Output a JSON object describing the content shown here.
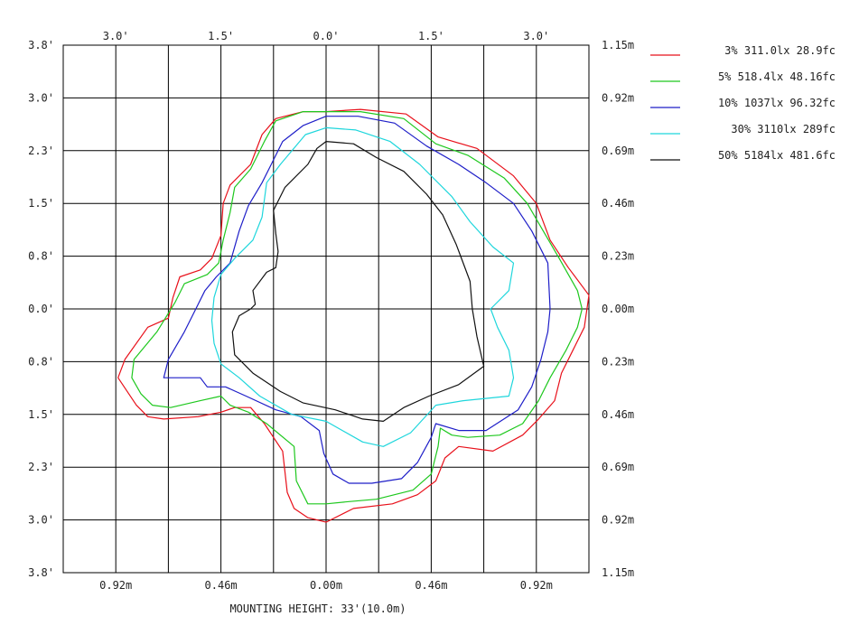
{
  "chart_data": {
    "type": "line",
    "grid": true,
    "xlim_m": [
      -1.15,
      1.15
    ],
    "ylim_m": [
      -1.15,
      1.15
    ],
    "x_ticks_bottom": [
      "0.92m",
      "0.46m",
      "0.00m",
      "0.46m",
      "0.92m"
    ],
    "x_ticks_top": [
      "3.0'",
      "1.5'",
      "0.0'",
      "1.5'",
      "3.0'"
    ],
    "y_ticks_left": [
      "3.8'",
      "3.0'",
      "2.3'",
      "1.5'",
      "0.8'",
      "0.0'",
      "0.8'",
      "1.5'",
      "2.3'",
      "3.0'",
      "3.8'"
    ],
    "y_ticks_right": [
      "1.15m",
      "0.92m",
      "0.69m",
      "0.46m",
      "0.23m",
      "0.00m",
      "0.23m",
      "0.46m",
      "0.69m",
      "0.92m",
      "1.15m"
    ],
    "caption": "MOUNTING HEIGHT: 33'(10.0m)",
    "series": [
      {
        "name": "3% 311.0lx 28.9fc",
        "color": "#e8101a",
        "points": [
          [
            0.0,
            0.86
          ],
          [
            0.15,
            0.87
          ],
          [
            0.35,
            0.85
          ],
          [
            0.49,
            0.75
          ],
          [
            0.66,
            0.7
          ],
          [
            0.82,
            0.58
          ],
          [
            0.92,
            0.46
          ],
          [
            0.98,
            0.3
          ],
          [
            1.06,
            0.18
          ],
          [
            1.15,
            0.06
          ],
          [
            1.13,
            -0.08
          ],
          [
            1.08,
            -0.18
          ],
          [
            1.03,
            -0.28
          ],
          [
            1.0,
            -0.4
          ],
          [
            0.93,
            -0.48
          ],
          [
            0.86,
            -0.55
          ],
          [
            0.73,
            -0.62
          ],
          [
            0.58,
            -0.6
          ],
          [
            0.52,
            -0.65
          ],
          [
            0.48,
            -0.75
          ],
          [
            0.4,
            -0.81
          ],
          [
            0.29,
            -0.85
          ],
          [
            0.12,
            -0.87
          ],
          [
            0.0,
            -0.93
          ],
          [
            -0.08,
            -0.91
          ],
          [
            -0.14,
            -0.87
          ],
          [
            -0.17,
            -0.8
          ],
          [
            -0.19,
            -0.62
          ],
          [
            -0.27,
            -0.5
          ],
          [
            -0.33,
            -0.43
          ],
          [
            -0.4,
            -0.43
          ],
          [
            -0.46,
            -0.45
          ],
          [
            -0.56,
            -0.47
          ],
          [
            -0.71,
            -0.48
          ],
          [
            -0.78,
            -0.47
          ],
          [
            -0.83,
            -0.42
          ],
          [
            -0.91,
            -0.3
          ],
          [
            -0.88,
            -0.22
          ],
          [
            -0.78,
            -0.08
          ],
          [
            -0.69,
            -0.04
          ],
          [
            -0.67,
            0.05
          ],
          [
            -0.64,
            0.14
          ],
          [
            -0.55,
            0.17
          ],
          [
            -0.5,
            0.22
          ],
          [
            -0.46,
            0.32
          ],
          [
            -0.45,
            0.46
          ],
          [
            -0.42,
            0.54
          ],
          [
            -0.33,
            0.63
          ],
          [
            -0.28,
            0.76
          ],
          [
            -0.22,
            0.83
          ],
          [
            -0.1,
            0.86
          ],
          [
            0.0,
            0.86
          ]
        ]
      },
      {
        "name": "5% 518.4lx 48.16fc",
        "color": "#1ec81e",
        "points": [
          [
            0.0,
            0.86
          ],
          [
            0.15,
            0.86
          ],
          [
            0.34,
            0.83
          ],
          [
            0.48,
            0.72
          ],
          [
            0.62,
            0.67
          ],
          [
            0.78,
            0.57
          ],
          [
            0.88,
            0.46
          ],
          [
            0.95,
            0.34
          ],
          [
            1.02,
            0.22
          ],
          [
            1.1,
            0.08
          ],
          [
            1.12,
            0.0
          ],
          [
            1.1,
            -0.08
          ],
          [
            1.05,
            -0.18
          ],
          [
            0.98,
            -0.3
          ],
          [
            0.93,
            -0.4
          ],
          [
            0.86,
            -0.5
          ],
          [
            0.76,
            -0.55
          ],
          [
            0.62,
            -0.56
          ],
          [
            0.55,
            -0.55
          ],
          [
            0.5,
            -0.52
          ],
          [
            0.49,
            -0.6
          ],
          [
            0.46,
            -0.72
          ],
          [
            0.38,
            -0.79
          ],
          [
            0.22,
            -0.83
          ],
          [
            0.1,
            -0.84
          ],
          [
            0.0,
            -0.85
          ],
          [
            -0.08,
            -0.85
          ],
          [
            -0.13,
            -0.75
          ],
          [
            -0.14,
            -0.6
          ],
          [
            -0.26,
            -0.5
          ],
          [
            -0.34,
            -0.45
          ],
          [
            -0.42,
            -0.42
          ],
          [
            -0.46,
            -0.38
          ],
          [
            -0.55,
            -0.4
          ],
          [
            -0.68,
            -0.43
          ],
          [
            -0.76,
            -0.42
          ],
          [
            -0.81,
            -0.37
          ],
          [
            -0.85,
            -0.3
          ],
          [
            -0.84,
            -0.22
          ],
          [
            -0.74,
            -0.1
          ],
          [
            -0.66,
            0.03
          ],
          [
            -0.62,
            0.11
          ],
          [
            -0.52,
            0.15
          ],
          [
            -0.47,
            0.2
          ],
          [
            -0.45,
            0.3
          ],
          [
            -0.42,
            0.42
          ],
          [
            -0.4,
            0.53
          ],
          [
            -0.33,
            0.61
          ],
          [
            -0.27,
            0.73
          ],
          [
            -0.22,
            0.82
          ],
          [
            -0.1,
            0.86
          ],
          [
            0.0,
            0.86
          ]
        ]
      },
      {
        "name": "10% 1037lx 96.32fc",
        "color": "#1e1ec8",
        "points": [
          [
            0.0,
            0.84
          ],
          [
            0.14,
            0.84
          ],
          [
            0.3,
            0.81
          ],
          [
            0.44,
            0.71
          ],
          [
            0.58,
            0.63
          ],
          [
            0.7,
            0.55
          ],
          [
            0.82,
            0.46
          ],
          [
            0.9,
            0.34
          ],
          [
            0.97,
            0.2
          ],
          [
            0.98,
            0.0
          ],
          [
            0.97,
            -0.1
          ],
          [
            0.94,
            -0.22
          ],
          [
            0.9,
            -0.34
          ],
          [
            0.84,
            -0.44
          ],
          [
            0.7,
            -0.53
          ],
          [
            0.58,
            -0.53
          ],
          [
            0.48,
            -0.5
          ],
          [
            0.46,
            -0.56
          ],
          [
            0.4,
            -0.67
          ],
          [
            0.33,
            -0.74
          ],
          [
            0.2,
            -0.76
          ],
          [
            0.1,
            -0.76
          ],
          [
            0.03,
            -0.72
          ],
          [
            -0.01,
            -0.63
          ],
          [
            -0.03,
            -0.53
          ],
          [
            -0.11,
            -0.47
          ],
          [
            -0.22,
            -0.44
          ],
          [
            -0.35,
            -0.38
          ],
          [
            -0.44,
            -0.34
          ],
          [
            -0.52,
            -0.34
          ],
          [
            -0.55,
            -0.3
          ],
          [
            -0.64,
            -0.3
          ],
          [
            -0.71,
            -0.3
          ],
          [
            -0.69,
            -0.22
          ],
          [
            -0.62,
            -0.1
          ],
          [
            -0.57,
            0.0
          ],
          [
            -0.53,
            0.08
          ],
          [
            -0.48,
            0.14
          ],
          [
            -0.42,
            0.2
          ],
          [
            -0.38,
            0.34
          ],
          [
            -0.34,
            0.45
          ],
          [
            -0.28,
            0.55
          ],
          [
            -0.24,
            0.63
          ],
          [
            -0.19,
            0.73
          ],
          [
            -0.1,
            0.8
          ],
          [
            0.0,
            0.84
          ]
        ]
      },
      {
        "name": "30% 3110lx 289fc",
        "color": "#1ed6dc",
        "points": [
          [
            0.0,
            0.79
          ],
          [
            0.13,
            0.78
          ],
          [
            0.28,
            0.73
          ],
          [
            0.41,
            0.63
          ],
          [
            0.55,
            0.49
          ],
          [
            0.63,
            0.38
          ],
          [
            0.73,
            0.27
          ],
          [
            0.82,
            0.2
          ],
          [
            0.8,
            0.08
          ],
          [
            0.72,
            0.0
          ],
          [
            0.75,
            -0.08
          ],
          [
            0.8,
            -0.18
          ],
          [
            0.82,
            -0.3
          ],
          [
            0.8,
            -0.38
          ],
          [
            0.6,
            -0.4
          ],
          [
            0.48,
            -0.42
          ],
          [
            0.37,
            -0.54
          ],
          [
            0.25,
            -0.6
          ],
          [
            0.16,
            -0.58
          ],
          [
            0.0,
            -0.49
          ],
          [
            -0.15,
            -0.46
          ],
          [
            -0.29,
            -0.38
          ],
          [
            -0.38,
            -0.3
          ],
          [
            -0.46,
            -0.24
          ],
          [
            -0.49,
            -0.15
          ],
          [
            -0.5,
            -0.05
          ],
          [
            -0.49,
            0.05
          ],
          [
            -0.46,
            0.15
          ],
          [
            -0.4,
            0.22
          ],
          [
            -0.32,
            0.3
          ],
          [
            -0.28,
            0.4
          ],
          [
            -0.26,
            0.55
          ],
          [
            -0.2,
            0.63
          ],
          [
            -0.09,
            0.76
          ],
          [
            0.0,
            0.79
          ]
        ]
      },
      {
        "name": "50% 5184lx 481.6fc",
        "color": "#111111",
        "points": [
          [
            0.0,
            0.73
          ],
          [
            0.12,
            0.72
          ],
          [
            0.22,
            0.66
          ],
          [
            0.34,
            0.6
          ],
          [
            0.44,
            0.5
          ],
          [
            0.51,
            0.41
          ],
          [
            0.57,
            0.28
          ],
          [
            0.63,
            0.12
          ],
          [
            0.64,
            0.0
          ],
          [
            0.66,
            -0.12
          ],
          [
            0.69,
            -0.25
          ],
          [
            0.58,
            -0.33
          ],
          [
            0.45,
            -0.38
          ],
          [
            0.34,
            -0.43
          ],
          [
            0.25,
            -0.49
          ],
          [
            0.16,
            -0.48
          ],
          [
            0.04,
            -0.44
          ],
          [
            -0.1,
            -0.41
          ],
          [
            -0.2,
            -0.36
          ],
          [
            -0.32,
            -0.28
          ],
          [
            -0.4,
            -0.2
          ],
          [
            -0.41,
            -0.1
          ],
          [
            -0.38,
            -0.03
          ],
          [
            -0.33,
            0.0
          ],
          [
            -0.31,
            0.02
          ],
          [
            -0.32,
            0.08
          ],
          [
            -0.26,
            0.16
          ],
          [
            -0.22,
            0.18
          ],
          [
            -0.21,
            0.25
          ],
          [
            -0.22,
            0.33
          ],
          [
            -0.23,
            0.43
          ],
          [
            -0.18,
            0.53
          ],
          [
            -0.08,
            0.63
          ],
          [
            -0.04,
            0.7
          ],
          [
            0.0,
            0.73
          ]
        ]
      }
    ]
  }
}
